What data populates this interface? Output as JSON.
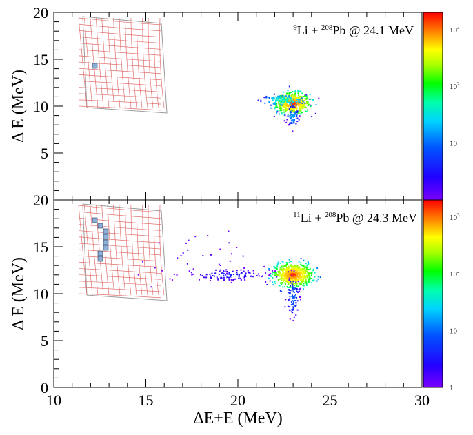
{
  "chart_data": [
    {
      "type": "heatmap",
      "title_parts": {
        "a_mass": "9",
        "a_sym": "Li + ",
        "b_mass": "208",
        "b_sym": "Pb @ 24.1 MeV"
      },
      "xlabel": "",
      "ylabel": "Δ E (MeV)",
      "xlim": [
        10,
        30
      ],
      "ylim": [
        0,
        20
      ],
      "ytick_labels": [
        "5",
        "10",
        "15",
        "20"
      ],
      "colorscale": "log",
      "colorbar_ticks": [
        {
          "base": "10",
          "exp": "3",
          "value": 1000
        },
        {
          "base": "10",
          "exp": "2",
          "value": 100
        },
        {
          "base": "10",
          "exp": "",
          "value": 10
        }
      ],
      "clusters": [
        {
          "x": 23.0,
          "y": 10.3,
          "sx": 0.45,
          "sy": 0.55,
          "n": 520,
          "intensity": 1000
        },
        {
          "x": 22.5,
          "y": 10.6,
          "sx": 0.6,
          "sy": 0.3,
          "n": 120,
          "intensity": 60
        },
        {
          "x": 23.0,
          "y": 8.9,
          "sx": 0.15,
          "sy": 0.55,
          "n": 70,
          "intensity": 20
        }
      ],
      "inset": {
        "type": "detector-grid",
        "highlighted_pixels": [
          [
            1,
            8
          ]
        ]
      }
    },
    {
      "type": "heatmap",
      "title_parts": {
        "a_mass": "11",
        "a_sym": "Li + ",
        "b_mass": "208",
        "b_sym": "Pb @ 24.3 MeV"
      },
      "xlabel": "ΔE+E (MeV)",
      "ylabel": "Δ E (MeV)",
      "xlim": [
        10,
        30
      ],
      "ylim": [
        0,
        20
      ],
      "xtick_labels": [
        "10",
        "15",
        "20",
        "25",
        "30"
      ],
      "ytick_labels": [
        "0",
        "5",
        "10",
        "15",
        "20"
      ],
      "colorscale": "log",
      "colorbar_ticks": [
        {
          "base": "10",
          "exp": "3",
          "value": 1000
        },
        {
          "base": "10",
          "exp": "2",
          "value": 100
        },
        {
          "base": "10",
          "exp": "",
          "value": 10
        },
        {
          "base": "1",
          "exp": "",
          "value": 1
        }
      ],
      "clusters": [
        {
          "x": 23.0,
          "y": 12.0,
          "sx": 0.5,
          "sy": 0.6,
          "n": 620,
          "intensity": 1000
        },
        {
          "x": 23.0,
          "y": 9.6,
          "sx": 0.18,
          "sy": 1.1,
          "n": 80,
          "intensity": 10
        },
        {
          "x": 19.5,
          "y": 12.0,
          "sx": 1.2,
          "sy": 0.35,
          "n": 110,
          "intensity": 5
        },
        {
          "x": 17.5,
          "y": 13.5,
          "sx": 1.5,
          "sy": 1.5,
          "n": 30,
          "intensity": 2
        }
      ],
      "inset": {
        "type": "detector-grid",
        "highlighted_pixels": [
          [
            1,
            2
          ],
          [
            2,
            3
          ],
          [
            3,
            4
          ],
          [
            3,
            5
          ],
          [
            3,
            6
          ],
          [
            3,
            7
          ],
          [
            2,
            8
          ],
          [
            2,
            9
          ]
        ]
      }
    }
  ]
}
